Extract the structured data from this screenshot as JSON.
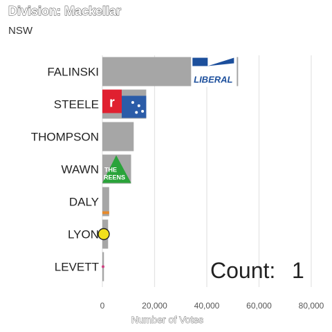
{
  "header": {
    "title": "Division: Mackellar",
    "subtitle": "NSW"
  },
  "counter": {
    "label": "Count:",
    "value": "1"
  },
  "chart_data": {
    "type": "bar",
    "orientation": "horizontal",
    "title": "Division: Mackellar",
    "subtitle": "NSW",
    "xlabel": "Number of Votes",
    "ylabel": "",
    "xlim": [
      0,
      80000
    ],
    "xticks": [
      0,
      20000,
      40000,
      60000,
      80000
    ],
    "xtick_labels": [
      "0",
      "20,000",
      "40,000",
      "60,000",
      "80,000"
    ],
    "categories": [
      "FALINSKI",
      "STEELE",
      "THOMPSON",
      "WAWN",
      "DALY",
      "LYON",
      "LEVETT"
    ],
    "values": [
      52000,
      16800,
      12000,
      11000,
      2600,
      2200,
      600
    ],
    "bar_color": "#a6a6a6",
    "grid": "vertical",
    "logos": [
      {
        "category": "FALINSKI",
        "party": "LIBERAL",
        "color": "#1c4f9c"
      },
      {
        "category": "STEELE",
        "party": "",
        "color": "#2b5ca8"
      },
      {
        "category": "WAWN",
        "party": "THE GREENS",
        "color": "#2aa33a"
      },
      {
        "category": "LYON",
        "party": "",
        "color": "#f2e01a"
      }
    ]
  }
}
